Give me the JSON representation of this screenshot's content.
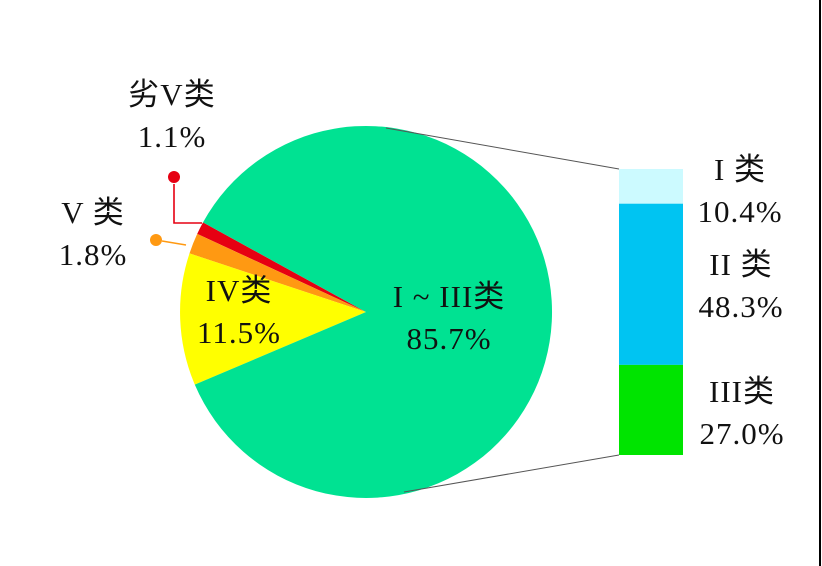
{
  "page": {
    "background": "#ffffff",
    "right_border_color": "#000000"
  },
  "chart_data": {
    "type": "pie",
    "title": "",
    "unit": "%",
    "legend_position": "none",
    "slices": [
      {
        "label": "劣V类",
        "value": 1.1,
        "display": "1.1%",
        "color": "#e60012"
      },
      {
        "label": "V 类",
        "value": 1.8,
        "display": "1.8%",
        "color": "#ff9912"
      },
      {
        "label": "IV类",
        "value": 11.5,
        "display": "11.5%",
        "color": "#ffff00"
      },
      {
        "label": "I ~ III类",
        "value": 85.7,
        "display": "85.7%",
        "color": "#00e292"
      }
    ],
    "breakdown_bar": {
      "parent_slice": "I ~ III类",
      "segments": [
        {
          "label": "I 类",
          "value": 10.4,
          "display": "10.4%",
          "color": "#ccfaff"
        },
        {
          "label": "II 类",
          "value": 48.3,
          "display": "48.3%",
          "color": "#00c4f2"
        },
        {
          "label": "III类",
          "value": 27.0,
          "display": "27.0%",
          "color": "#00e400"
        }
      ]
    },
    "layout": {
      "start_angle_deg": 151.2,
      "connector_color": "#555555"
    }
  }
}
